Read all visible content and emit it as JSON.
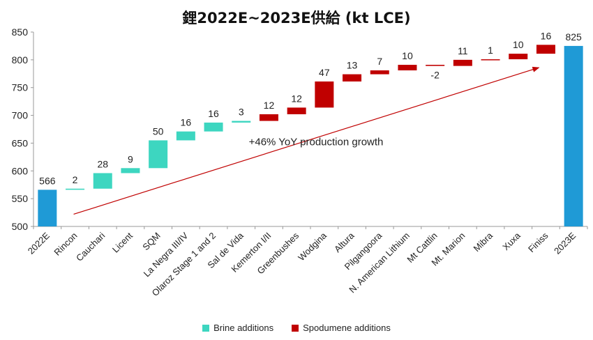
{
  "chart_data": {
    "type": "bar",
    "subtype": "waterfall",
    "title": "鋰2022E~2023E供給 (kt LCE)",
    "ylim": [
      500,
      850
    ],
    "yticks": [
      500,
      550,
      600,
      650,
      700,
      750,
      800,
      850
    ],
    "grid": false,
    "legend_position": "bottom",
    "categories": [
      "2022E",
      "Rincon",
      "Cauchari",
      "Licent",
      "SQM",
      "La Negra III/IV",
      "Olaroz Stage 1 and 2",
      "Sal de Vida",
      "Kemerton I/II",
      "Greenbushes",
      "Wodgina",
      "Altura",
      "Pilgangoora",
      "N. American Lithium",
      "Mt Cattlin",
      "Mt. Marion",
      "Mibra",
      "Xuxa",
      "Finiss",
      "2023E"
    ],
    "values": [
      566,
      2,
      28,
      9,
      50,
      16,
      16,
      3,
      12,
      12,
      47,
      13,
      7,
      10,
      -2,
      11,
      1,
      10,
      16,
      825
    ],
    "kinds": [
      "total",
      "brine",
      "brine",
      "brine",
      "brine",
      "brine",
      "brine",
      "brine",
      "spodumene",
      "spodumene",
      "spodumene",
      "spodumene",
      "spodumene",
      "spodumene",
      "spodumene",
      "spodumene",
      "spodumene",
      "spodumene",
      "spodumene",
      "total"
    ],
    "series": [
      {
        "name": "Brine additions",
        "color": "#3dd6c0"
      },
      {
        "name": "Spodumene additions",
        "color": "#c00000"
      }
    ],
    "total_color": "#1f9ad6",
    "annotation": "+46% YoY production growth",
    "arrow_color": "#c00000"
  }
}
